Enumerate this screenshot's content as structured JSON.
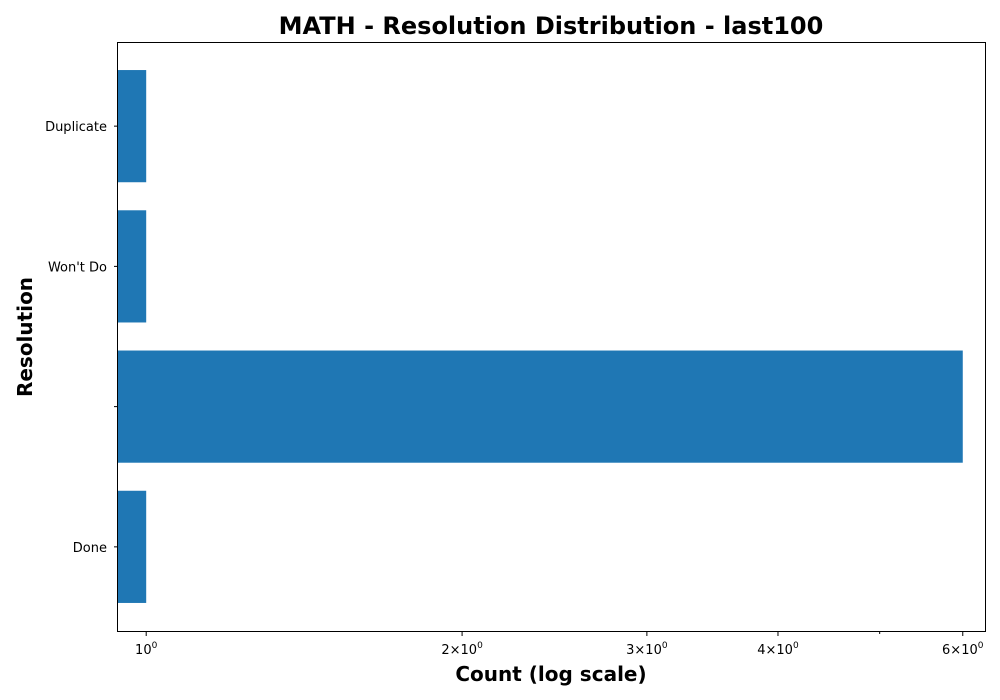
{
  "chart_data": {
    "type": "bar",
    "orientation": "horizontal",
    "title": "MATH - Resolution Distribution - last100",
    "xlabel": "Count (log scale)",
    "ylabel": "Resolution",
    "x_scale": "log",
    "xlim": [
      0.94,
      6.3
    ],
    "categories": [
      "Duplicate",
      "Won't Do",
      "",
      "Done"
    ],
    "values": [
      1,
      1,
      6,
      1
    ],
    "bar_color": "#1f77b4",
    "x_ticks": [
      {
        "value": 1,
        "mantissa": "",
        "base": "10",
        "exp": "0"
      },
      {
        "value": 2,
        "mantissa": "2×",
        "base": "10",
        "exp": "0"
      },
      {
        "value": 3,
        "mantissa": "3×",
        "base": "10",
        "exp": "0"
      },
      {
        "value": 4,
        "mantissa": "4×",
        "base": "10",
        "exp": "0"
      },
      {
        "value": 6,
        "mantissa": "6×",
        "base": "10",
        "exp": "0"
      }
    ],
    "x_minor_ticks": [
      5
    ],
    "grid": false,
    "legend": "none"
  }
}
